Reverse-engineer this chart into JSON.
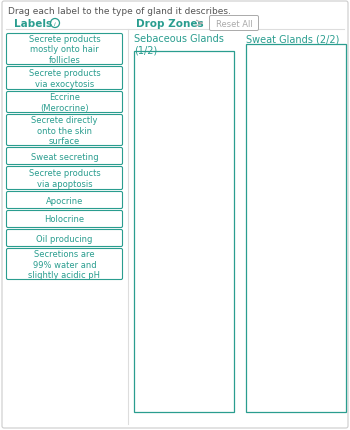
{
  "bg_color": "#ffffff",
  "outer_border_color": "#cccccc",
  "instruction_text": "Drag each label to the type of gland it describes.",
  "instruction_fontsize": 6.5,
  "instruction_color": "#555555",
  "labels_header": "Labels",
  "labels_header_color": "#2a9d8f",
  "labels_header_fontsize": 7.5,
  "dropzones_header": "Drop Zones",
  "dropzones_header_color": "#2a9d8f",
  "dropzones_header_fontsize": 7.5,
  "arrow_color": "#aaaaaa",
  "reset_button_text": "Reset All",
  "reset_button_color": "#aaaaaa",
  "reset_button_fontsize": 6,
  "divider_color": "#dddddd",
  "teal": "#2a9d8f",
  "label_boxes": [
    "Secrete products\nmostly onto hair\nfollicles",
    "Secrete products\nvia exocytosis",
    "Eccrine\n(Merocrine)",
    "Secrete directly\nonto the skin\nsurface",
    "Sweat secreting",
    "Secrete products\nvia apoptosis",
    "Apocrine",
    "Holocrine",
    "Oil producing",
    "Secretions are\n99% water and\nslightly acidic pH"
  ],
  "label_fontsize": 6.0,
  "drop_zone_titles": [
    "Sebaceous Glands\n(1/2)",
    "Sweat Glands (2/2)"
  ],
  "drop_zone_title_fontsize": 7.0
}
